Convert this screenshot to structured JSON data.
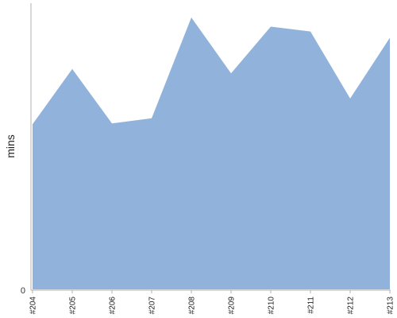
{
  "chart_data": {
    "type": "area",
    "categories": [
      "#204",
      "#205",
      "#206",
      "#207",
      "#208",
      "#209",
      "#210",
      "#211",
      "#212",
      "#213"
    ],
    "values": [
      57.7,
      77.0,
      58.0,
      59.8,
      95.0,
      75.5,
      91.8,
      90.1,
      66.7,
      87.9
    ],
    "ylabel": "mins",
    "y_ticks": [
      "0"
    ],
    "ylim": [
      0,
      100
    ],
    "grid": false,
    "legend": "none"
  },
  "colors": {
    "area_fill": "#91b3db",
    "axis": "#b0b0b0",
    "tick_text": "#222222"
  }
}
